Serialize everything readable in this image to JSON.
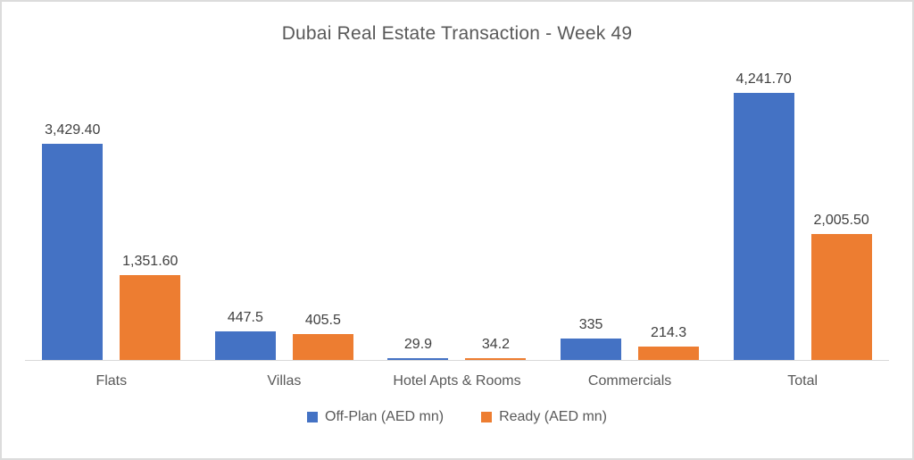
{
  "frame": {
    "background": "#ffffff",
    "border_color": "#dcdcdc"
  },
  "chart_data": {
    "type": "bar",
    "title": "Dubai Real Estate Transaction - Week 49",
    "categories": [
      "Flats",
      "Villas",
      "Hotel Apts & Rooms",
      "Commercials",
      "Total"
    ],
    "series": [
      {
        "name": "Off-Plan (AED mn)",
        "color": "#4472C4",
        "values": [
          3429.4,
          447.5,
          29.9,
          335,
          4241.7
        ],
        "labels": [
          "3,429.40",
          "447.5",
          "29.9",
          "335",
          "4,241.70"
        ]
      },
      {
        "name": "Ready (AED mn)",
        "color": "#ED7D31",
        "values": [
          1351.6,
          405.5,
          34.2,
          214.3,
          2005.5
        ],
        "labels": [
          "1,351.60",
          "405.5",
          "34.2",
          "214.3",
          "2,005.50"
        ]
      }
    ],
    "xlabel": "",
    "ylabel": "",
    "ylim": [
      0,
      4241.7
    ],
    "grid": false,
    "data_labels": true,
    "legend_position": "bottom",
    "axis_line_color": "#d9d9d9",
    "title_color": "#595959",
    "data_label_color": "#404040",
    "category_label_color": "#595959"
  }
}
